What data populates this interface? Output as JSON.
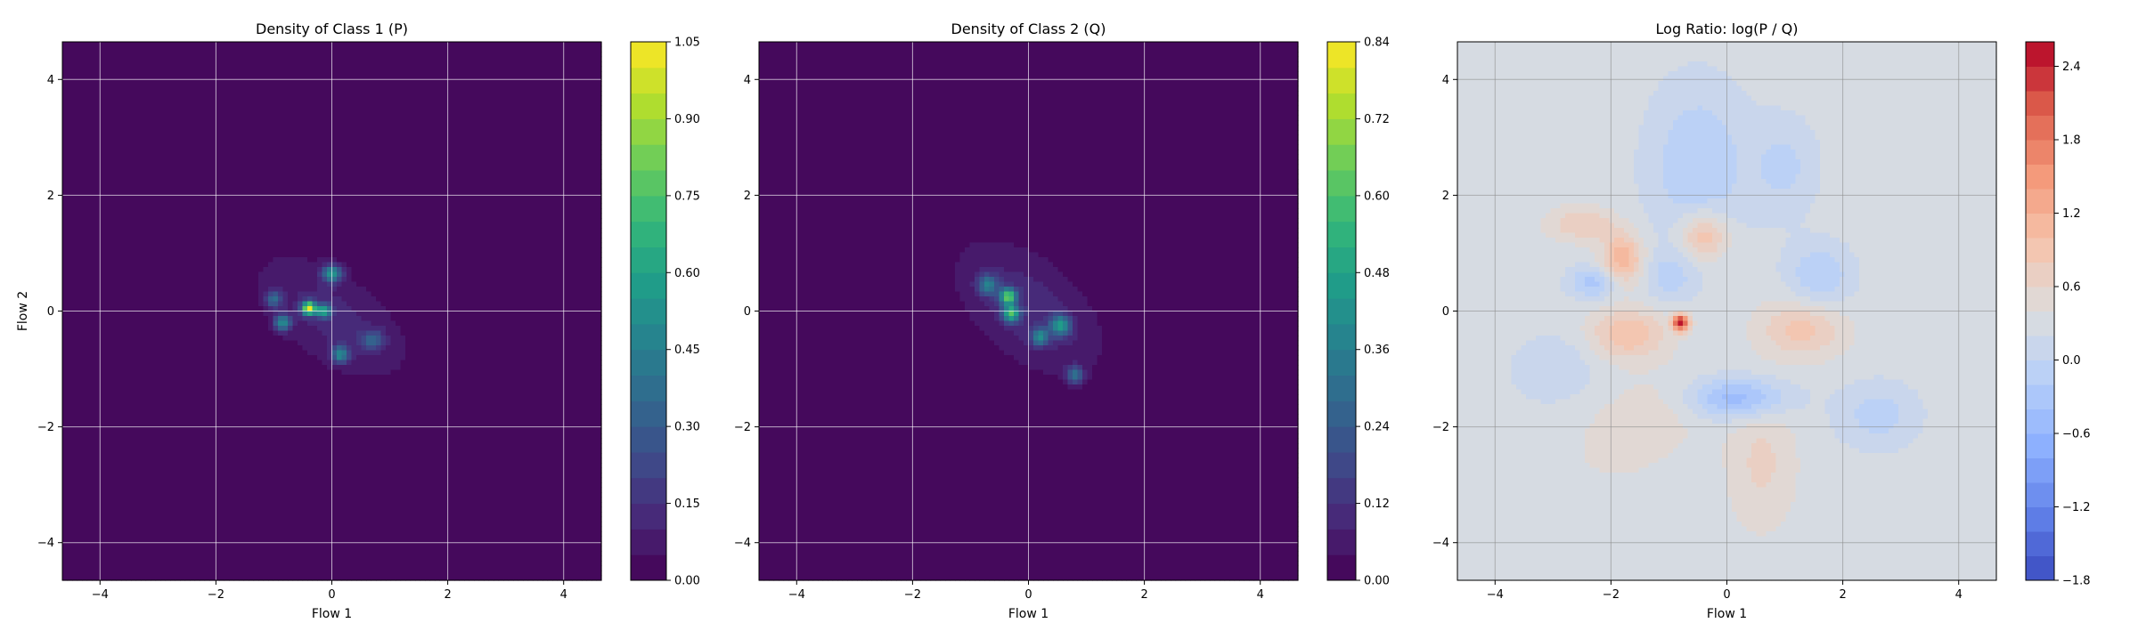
{
  "chart_data": [
    {
      "type": "heatmap",
      "title": "Density of Class 1 (P)",
      "xlabel": "Flow 1",
      "ylabel": "Flow 2",
      "xlim": [
        -4.65,
        4.65
      ],
      "ylim": [
        -4.65,
        4.65
      ],
      "xticks": [
        -4,
        -2,
        0,
        2,
        4
      ],
      "yticks": [
        -4,
        -2,
        0,
        2,
        4
      ],
      "grid": true,
      "colormap": "viridis",
      "colorbar": {
        "range": [
          0.0,
          1.05
        ],
        "ticks": [
          0.0,
          0.15,
          0.3,
          0.45,
          0.6,
          0.75,
          0.9,
          1.05
        ],
        "tick_labels": [
          "0.00",
          "0.15",
          "0.30",
          "0.45",
          "0.60",
          "0.75",
          "0.90",
          "1.05"
        ],
        "levels": 21
      },
      "background_value": 0.0,
      "blobs": [
        {
          "cx": 0.0,
          "cy": -0.1,
          "sx": 1.1,
          "sy": 0.55,
          "rot": -35,
          "amp": 0.12
        },
        {
          "cx": -0.4,
          "cy": 0.05,
          "sx": 0.08,
          "sy": 0.08,
          "rot": 0,
          "amp": 0.95
        },
        {
          "cx": -0.15,
          "cy": 0.0,
          "sx": 0.1,
          "sy": 0.08,
          "rot": 0,
          "amp": 0.55
        },
        {
          "cx": 0.0,
          "cy": 0.65,
          "sx": 0.12,
          "sy": 0.1,
          "rot": 0,
          "amp": 0.5
        },
        {
          "cx": -0.85,
          "cy": -0.2,
          "sx": 0.1,
          "sy": 0.1,
          "rot": 0,
          "amp": 0.45
        },
        {
          "cx": 0.15,
          "cy": -0.75,
          "sx": 0.1,
          "sy": 0.1,
          "rot": 0,
          "amp": 0.45
        },
        {
          "cx": -1.0,
          "cy": 0.2,
          "sx": 0.1,
          "sy": 0.1,
          "rot": 0,
          "amp": 0.3
        },
        {
          "cx": 0.7,
          "cy": -0.5,
          "sx": 0.15,
          "sy": 0.12,
          "rot": 0,
          "amp": 0.25
        }
      ]
    },
    {
      "type": "heatmap",
      "title": "Density of Class 2 (Q)",
      "xlabel": "Flow 1",
      "ylabel": "",
      "xlim": [
        -4.65,
        4.65
      ],
      "ylim": [
        -4.65,
        4.65
      ],
      "xticks": [
        -4,
        -2,
        0,
        2,
        4
      ],
      "yticks": [
        -4,
        -2,
        0,
        2,
        4
      ],
      "grid": true,
      "colormap": "viridis",
      "colorbar": {
        "range": [
          0.0,
          0.84
        ],
        "ticks": [
          0.0,
          0.12,
          0.24,
          0.36,
          0.48,
          0.6,
          0.72,
          0.84
        ],
        "tick_labels": [
          "0.00",
          "0.12",
          "0.24",
          "0.36",
          "0.48",
          "0.60",
          "0.72",
          "0.84"
        ],
        "levels": 21
      },
      "background_value": 0.0,
      "blobs": [
        {
          "cx": 0.0,
          "cy": 0.05,
          "sx": 1.05,
          "sy": 0.6,
          "rot": -40,
          "amp": 0.11
        },
        {
          "cx": -0.35,
          "cy": 0.25,
          "sx": 0.1,
          "sy": 0.1,
          "rot": 0,
          "amp": 0.55
        },
        {
          "cx": -0.3,
          "cy": -0.05,
          "sx": 0.1,
          "sy": 0.1,
          "rot": 0,
          "amp": 0.5
        },
        {
          "cx": 0.55,
          "cy": -0.25,
          "sx": 0.12,
          "sy": 0.12,
          "rot": 0,
          "amp": 0.4
        },
        {
          "cx": 0.2,
          "cy": -0.45,
          "sx": 0.1,
          "sy": 0.1,
          "rot": 0,
          "amp": 0.35
        },
        {
          "cx": -0.7,
          "cy": 0.45,
          "sx": 0.12,
          "sy": 0.12,
          "rot": 0,
          "amp": 0.3
        },
        {
          "cx": 0.8,
          "cy": -1.1,
          "sx": 0.1,
          "sy": 0.1,
          "rot": 0,
          "amp": 0.3
        }
      ]
    },
    {
      "type": "heatmap",
      "title": "Log Ratio: log(P / Q)",
      "xlabel": "Flow 1",
      "ylabel": "",
      "xlim": [
        -4.65,
        4.65
      ],
      "ylim": [
        -4.65,
        4.65
      ],
      "xticks": [
        -4,
        -2,
        0,
        2,
        4
      ],
      "yticks": [
        -4,
        -2,
        0,
        2,
        4
      ],
      "grid": true,
      "colormap": "coolwarm",
      "colorbar": {
        "range": [
          -1.8,
          2.6
        ],
        "ticks": [
          -1.8,
          -1.2,
          -0.6,
          0.0,
          0.6,
          1.2,
          1.8,
          2.4
        ],
        "tick_labels": [
          "−1.8",
          "−1.2",
          "−0.6",
          "0.0",
          "0.6",
          "1.2",
          "1.8",
          "2.4"
        ],
        "levels": 22
      },
      "background_value": 0.3,
      "blobs": [
        {
          "cx": -1.8,
          "cy": 0.9,
          "sx": 0.25,
          "sy": 0.3,
          "rot": 0,
          "amp": 0.9
        },
        {
          "cx": -1.7,
          "cy": -0.4,
          "sx": 0.45,
          "sy": 0.3,
          "rot": 0,
          "amp": 0.7
        },
        {
          "cx": -0.8,
          "cy": -0.2,
          "sx": 0.1,
          "sy": 0.1,
          "rot": 0,
          "amp": 2.2
        },
        {
          "cx": -0.4,
          "cy": 1.3,
          "sx": 0.3,
          "sy": 0.3,
          "rot": 0,
          "amp": 0.8
        },
        {
          "cx": 1.3,
          "cy": -0.3,
          "sx": 0.5,
          "sy": 0.35,
          "rot": 0,
          "amp": 0.6
        },
        {
          "cx": -2.5,
          "cy": 1.5,
          "sx": 0.4,
          "sy": 0.2,
          "rot": 0,
          "amp": 0.5
        },
        {
          "cx": 0.6,
          "cy": -2.6,
          "sx": 0.4,
          "sy": 0.8,
          "rot": 0,
          "amp": 0.35
        },
        {
          "cx": -1.5,
          "cy": -2.0,
          "sx": 0.8,
          "sy": 0.5,
          "rot": 30,
          "amp": 0.25
        },
        {
          "cx": -2.3,
          "cy": 0.5,
          "sx": 0.3,
          "sy": 0.2,
          "rot": 0,
          "amp": -0.6
        },
        {
          "cx": 0.2,
          "cy": -1.5,
          "sx": 0.6,
          "sy": 0.25,
          "rot": 0,
          "amp": -0.85
        },
        {
          "cx": -0.5,
          "cy": 2.5,
          "sx": 0.6,
          "sy": 1.0,
          "rot": 0,
          "amp": -0.5
        },
        {
          "cx": 1.6,
          "cy": 0.6,
          "sx": 0.4,
          "sy": 0.4,
          "rot": 0,
          "amp": -0.5
        },
        {
          "cx": -1.0,
          "cy": 0.6,
          "sx": 0.3,
          "sy": 0.3,
          "rot": 0,
          "amp": -0.4
        },
        {
          "cx": 2.6,
          "cy": -1.8,
          "sx": 0.5,
          "sy": 0.4,
          "rot": 0,
          "amp": -0.4
        },
        {
          "cx": 1.0,
          "cy": 2.5,
          "sx": 0.4,
          "sy": 0.6,
          "rot": 0,
          "amp": -0.35
        },
        {
          "cx": -3.0,
          "cy": -1.0,
          "sx": 0.5,
          "sy": 0.4,
          "rot": 0,
          "amp": -0.3
        }
      ]
    }
  ]
}
